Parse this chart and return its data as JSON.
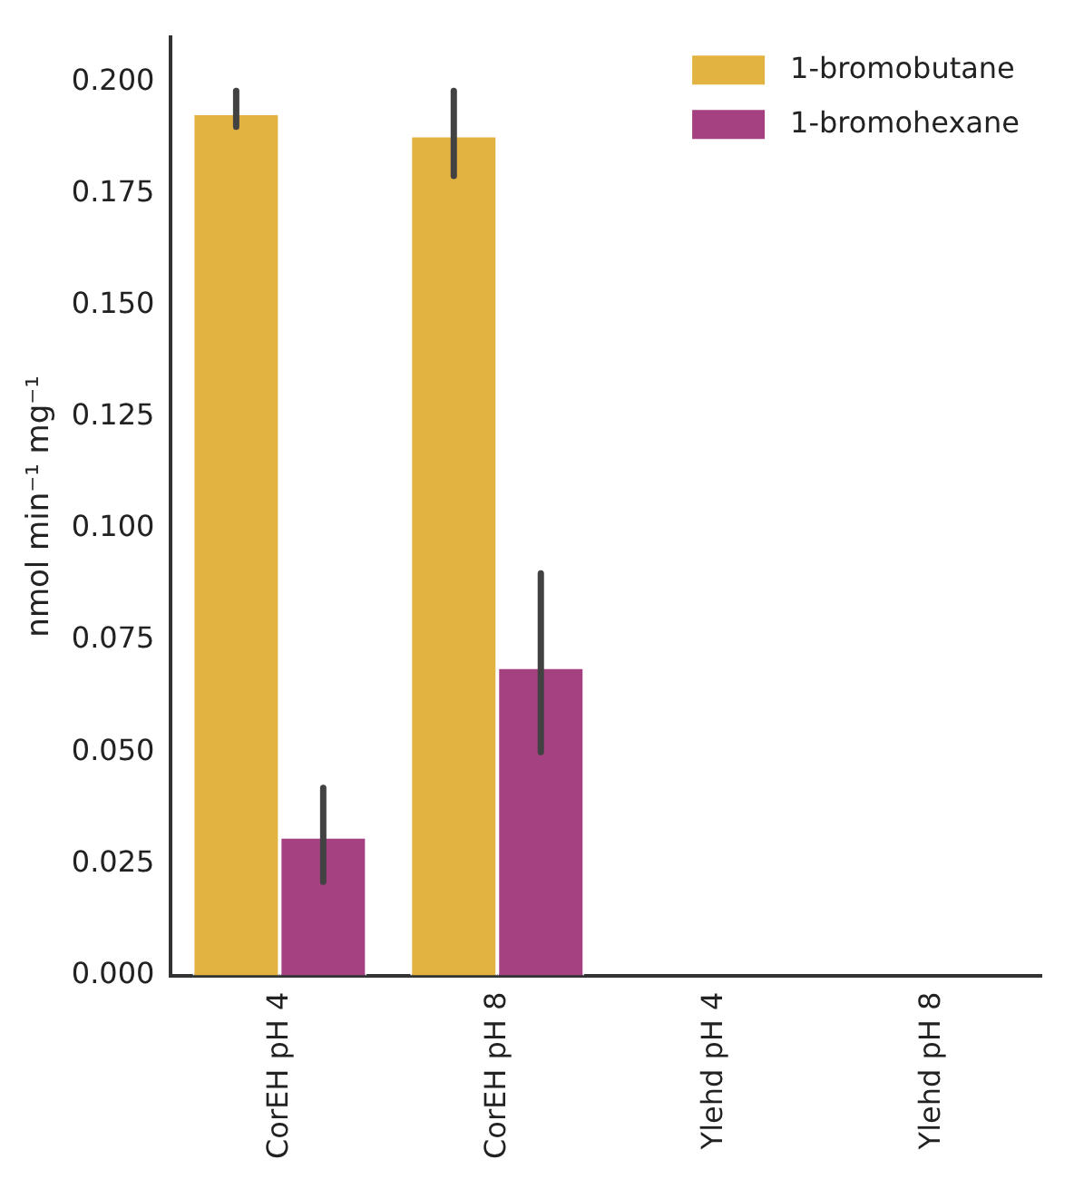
{
  "chart_data": {
    "type": "bar",
    "ylabel": "nmol min⁻¹ mg⁻¹",
    "categories": [
      "CorEH pH 4",
      "CorEH pH 8",
      "Ylehd pH 4",
      "Ylehd pH 8"
    ],
    "series": [
      {
        "name": "1-bromobutane",
        "color": "#e3b342",
        "values": [
          0.193,
          0.188,
          0,
          0
        ],
        "errors": [
          [
            0.19,
            0.198
          ],
          [
            0.179,
            0.198
          ],
          null,
          null
        ]
      },
      {
        "name": "1-bromohexane",
        "color": "#a54180",
        "values": [
          0.031,
          0.069,
          0,
          0
        ],
        "errors": [
          [
            0.021,
            0.042
          ],
          [
            0.05,
            0.09
          ],
          null,
          null
        ]
      }
    ],
    "ylim": [
      0,
      0.21
    ],
    "yticks": [
      {
        "value": 0,
        "label": "0.000"
      },
      0.025,
      {
        "value": 0.05,
        "label": "0.050"
      },
      0.075,
      {
        "value": 0.1,
        "label": "0.100"
      },
      0.125,
      {
        "value": 0.15,
        "label": "0.150"
      },
      0.175,
      {
        "value": 0.2,
        "label": "0.200"
      }
    ],
    "grid": false,
    "legend": "top right"
  }
}
